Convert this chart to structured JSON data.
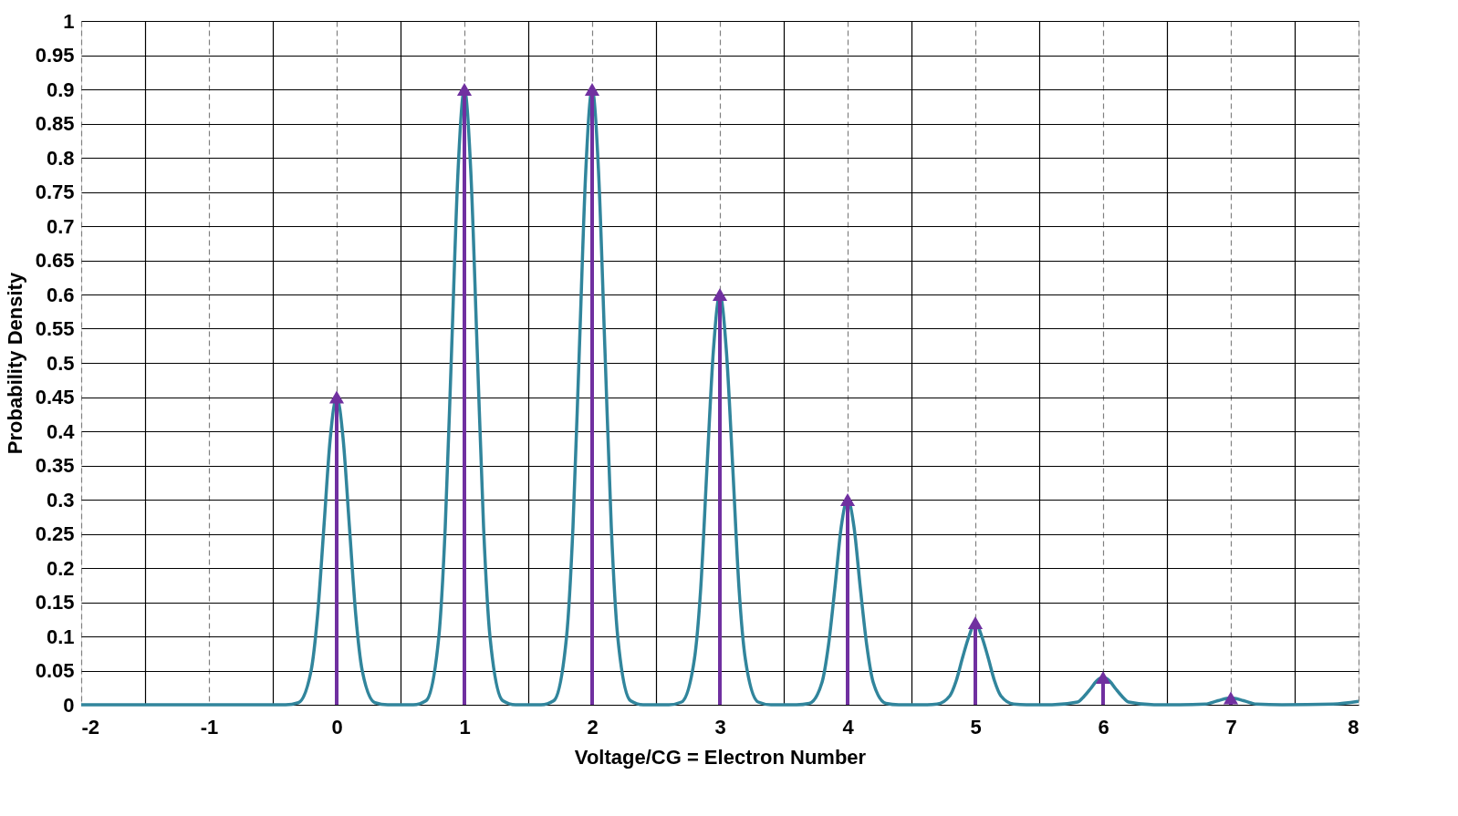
{
  "chart_data": {
    "type": "line",
    "xlabel": "Voltage/CG = Electron Number",
    "ylabel": "Probability Density",
    "xlim": [
      -2,
      8
    ],
    "ylim": [
      0,
      1
    ],
    "xticks": [
      -2,
      {
        "value": -1.5,
        "label": null
      },
      -1,
      {
        "value": -0.5,
        "label": null
      },
      0,
      {
        "value": 0.5,
        "label": null
      },
      1,
      {
        "value": 1.5,
        "label": null
      },
      2,
      {
        "value": 2.5,
        "label": null
      },
      3,
      {
        "value": 3.5,
        "label": null
      },
      4,
      {
        "value": 4.5,
        "label": null
      },
      5,
      {
        "value": 5.5,
        "label": null
      },
      6,
      {
        "value": 6.5,
        "label": null
      },
      7,
      {
        "value": 7.5,
        "label": null
      },
      8
    ],
    "yticks": [
      0,
      0.05,
      0.1,
      0.15,
      0.2,
      0.25,
      0.3,
      0.35,
      0.4,
      0.45,
      0.5,
      0.55,
      0.6,
      0.65,
      0.7,
      0.75,
      0.8,
      0.85,
      0.9,
      0.95,
      1
    ],
    "grid": true,
    "legend": false,
    "series": [
      {
        "type": "line",
        "color": "#31859c",
        "marker": "none",
        "x": [
          -2,
          -0.4,
          -0.3,
          -0.2,
          -0.15,
          -0.1,
          -0.05,
          0,
          0.05,
          0.1,
          0.15,
          0.2,
          0.3,
          0.4,
          0.6,
          0.7,
          0.8,
          0.85,
          0.9,
          0.95,
          1,
          1.05,
          1.1,
          1.15,
          1.2,
          1.3,
          1.4,
          1.6,
          1.7,
          1.8,
          1.85,
          1.9,
          1.95,
          2,
          2.05,
          2.1,
          2.15,
          2.2,
          2.3,
          2.4,
          2.6,
          2.7,
          2.8,
          2.85,
          2.9,
          2.95,
          3,
          3.05,
          3.1,
          3.15,
          3.2,
          3.3,
          3.4,
          3.6,
          3.7,
          3.8,
          3.85,
          3.9,
          3.95,
          4,
          4.05,
          4.1,
          4.15,
          4.2,
          4.3,
          4.4,
          4.6,
          4.7,
          4.8,
          4.85,
          4.9,
          4.95,
          5,
          5.05,
          5.1,
          5.15,
          5.2,
          5.3,
          5.4,
          5.6,
          5.8,
          5.85,
          5.9,
          5.95,
          6,
          6.05,
          6.1,
          6.15,
          6.2,
          6.4,
          6.6,
          6.8,
          6.9,
          7,
          7.1,
          7.2,
          7.4,
          7.8,
          8
        ],
        "values": [
          0,
          0,
          0.003,
          0.05,
          0.13,
          0.26,
          0.39,
          0.45,
          0.39,
          0.26,
          0.13,
          0.05,
          0.003,
          0,
          0,
          0.006,
          0.1,
          0.26,
          0.52,
          0.78,
          0.9,
          0.78,
          0.52,
          0.26,
          0.1,
          0.006,
          0,
          0,
          0.006,
          0.1,
          0.26,
          0.52,
          0.78,
          0.9,
          0.78,
          0.52,
          0.26,
          0.1,
          0.006,
          0,
          0,
          0.004,
          0.066,
          0.17,
          0.35,
          0.52,
          0.6,
          0.52,
          0.35,
          0.17,
          0.066,
          0.004,
          0,
          0,
          0.002,
          0.033,
          0.087,
          0.17,
          0.26,
          0.3,
          0.26,
          0.17,
          0.087,
          0.033,
          0.002,
          0,
          0,
          0.001,
          0.013,
          0.035,
          0.069,
          0.1,
          0.12,
          0.1,
          0.069,
          0.035,
          0.013,
          0.001,
          0,
          0,
          0.004,
          0.012,
          0.023,
          0.035,
          0.04,
          0.035,
          0.023,
          0.012,
          0.004,
          0,
          0,
          0.001,
          0.006,
          0.01,
          0.006,
          0.001,
          0,
          0.001,
          0.005
        ]
      },
      {
        "type": "lollipop",
        "color": "#7030a0",
        "marker": "triangle",
        "x": [
          0,
          1,
          2,
          3,
          4,
          5,
          6,
          7
        ],
        "values": [
          0.45,
          0.9,
          0.9,
          0.6,
          0.3,
          0.12,
          0.04,
          0.01
        ]
      }
    ]
  }
}
